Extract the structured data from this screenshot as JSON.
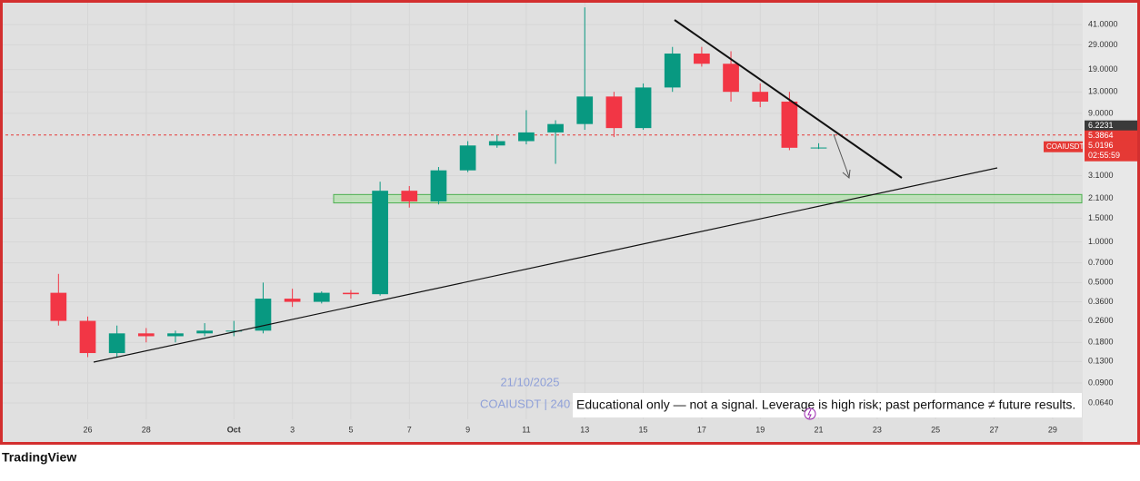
{
  "chart_data": {
    "type": "candlestick",
    "log_scale": true,
    "grid": true,
    "up_color": "#089981",
    "down_color": "#f23645",
    "x": [
      "2025-09-25",
      "2025-09-26",
      "2025-09-27",
      "2025-09-28",
      "2025-09-29",
      "2025-09-30",
      "2025-10-01",
      "2025-10-02",
      "2025-10-03",
      "2025-10-04",
      "2025-10-05",
      "2025-10-06",
      "2025-10-07",
      "2025-10-08",
      "2025-10-09",
      "2025-10-10",
      "2025-10-11",
      "2025-10-12",
      "2025-10-13",
      "2025-10-14",
      "2025-10-15",
      "2025-10-16",
      "2025-10-17",
      "2025-10-18",
      "2025-10-19",
      "2025-10-20",
      "2025-10-21"
    ],
    "open": [
      0.42,
      0.26,
      0.15,
      0.21,
      0.2,
      0.21,
      0.22,
      0.22,
      0.38,
      0.36,
      0.42,
      0.41,
      2.4,
      2.0,
      3.4,
      5.2,
      5.6,
      6.5,
      7.5,
      12,
      7.0,
      14,
      25,
      21,
      13,
      11,
      5.0
    ],
    "high": [
      0.58,
      0.28,
      0.24,
      0.23,
      0.22,
      0.25,
      0.26,
      0.5,
      0.45,
      0.43,
      0.44,
      2.8,
      2.6,
      3.6,
      5.6,
      6.2,
      9.5,
      8.0,
      55,
      13,
      15,
      28,
      28,
      26,
      15,
      13,
      5.4
    ],
    "low": [
      0.24,
      0.14,
      0.14,
      0.18,
      0.18,
      0.2,
      0.2,
      0.21,
      0.33,
      0.35,
      0.38,
      0.4,
      1.8,
      1.9,
      3.3,
      5.0,
      5.3,
      3.8,
      6.8,
      6.0,
      6.8,
      13,
      20,
      11,
      10,
      4.8,
      4.9
    ],
    "close": [
      0.26,
      0.15,
      0.21,
      0.2,
      0.21,
      0.22,
      0.22,
      0.38,
      0.36,
      0.42,
      0.41,
      2.4,
      2.0,
      3.4,
      5.2,
      5.6,
      6.5,
      7.5,
      12,
      7.0,
      14,
      25,
      21,
      13,
      11,
      5.0,
      5.02
    ],
    "xlim": [
      "2025-09-23",
      "2025-10-30"
    ],
    "xticks": [
      {
        "value": "2025-09-26",
        "label": "26"
      },
      {
        "value": "2025-09-28",
        "label": "28"
      },
      {
        "value": "2025-10-01",
        "label": "Oct"
      },
      {
        "value": "2025-10-03",
        "label": "3"
      },
      {
        "value": "2025-10-05",
        "label": "5"
      },
      {
        "value": "2025-10-07",
        "label": "7"
      },
      {
        "value": "2025-10-09",
        "label": "9"
      },
      {
        "value": "2025-10-11",
        "label": "11"
      },
      {
        "value": "2025-10-13",
        "label": "13"
      },
      {
        "value": "2025-10-15",
        "label": "15"
      },
      {
        "value": "2025-10-17",
        "label": "17"
      },
      {
        "value": "2025-10-19",
        "label": "19"
      },
      {
        "value": "2025-10-21",
        "label": "21"
      },
      {
        "value": "2025-10-23",
        "label": "23"
      },
      {
        "value": "2025-10-25",
        "label": "25"
      },
      {
        "value": "2025-10-27",
        "label": "27"
      },
      {
        "value": "2025-10-29",
        "label": "29"
      }
    ],
    "ylim": [
      0.0484,
      62.4
    ],
    "yticks": [
      {
        "value": 41,
        "label": "41.0000"
      },
      {
        "value": 29,
        "label": "29.0000"
      },
      {
        "value": 19,
        "label": "19.0000"
      },
      {
        "value": 13,
        "label": "13.0000"
      },
      {
        "value": 9,
        "label": "9.0000"
      },
      {
        "value": 3.1,
        "label": "3.1000"
      },
      {
        "value": 2.1,
        "label": "2.1000"
      },
      {
        "value": 1.5,
        "label": "1.5000"
      },
      {
        "value": 1,
        "label": "1.0000"
      },
      {
        "value": 0.7,
        "label": "0.7000"
      },
      {
        "value": 0.5,
        "label": "0.5000"
      },
      {
        "value": 0.36,
        "label": "0.3600"
      },
      {
        "value": 0.26,
        "label": "0.2600"
      },
      {
        "value": 0.18,
        "label": "0.1800"
      },
      {
        "value": 0.13,
        "label": "0.1300"
      },
      {
        "value": 0.09,
        "label": "0.0900"
      },
      {
        "value": 0.064,
        "label": "0.0640"
      }
    ],
    "reference_price": 6.2231,
    "mark_price": 5.3864,
    "symbol": "COAIUSDT",
    "last_price": 5.0196,
    "countdown": "02:55:59",
    "zone": [
      1.95,
      2.25
    ],
    "zone_color": "#a8e0a0"
  },
  "watermark": {
    "date": "21/10/2025",
    "symbol": "COAIUSDT | 240"
  },
  "disclaimer": "Educational only — not a signal. Leverage is high risk; past performance ≠ future results.",
  "brand": "TradingView"
}
